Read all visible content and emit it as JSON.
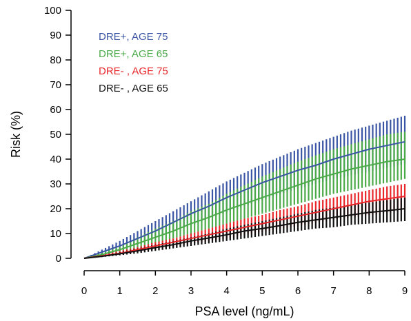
{
  "chart_data": {
    "type": "line",
    "title": "",
    "xlabel": "PSA level (ng/mL)",
    "ylabel": "Risk (%)",
    "xlim": [
      0,
      9
    ],
    "ylim": [
      0,
      100
    ],
    "x_ticks": [
      0,
      1,
      2,
      3,
      4,
      5,
      6,
      7,
      8,
      9
    ],
    "y_ticks": [
      0,
      10,
      20,
      30,
      40,
      50,
      60,
      70,
      80,
      90,
      100
    ],
    "grid": false,
    "legend_position": "top-left",
    "error_bars": true,
    "series": [
      {
        "name": "DRE+, AGE 75",
        "color": "#3a55a4",
        "x": [
          0,
          0.5,
          1,
          1.5,
          2,
          2.5,
          3,
          3.5,
          4,
          4.5,
          5,
          5.5,
          6,
          6.5,
          7,
          7.5,
          8,
          8.5,
          9
        ],
        "values": [
          0,
          2.5,
          5,
          8,
          11,
          14.5,
          18,
          21,
          24.5,
          27.5,
          30.5,
          33,
          35.5,
          37.5,
          40,
          42,
          44,
          45.5,
          47
        ],
        "lower": [
          0,
          1.5,
          3,
          5.5,
          8,
          11,
          13.5,
          16,
          18.5,
          21,
          23.5,
          26,
          28,
          30,
          32,
          33.5,
          35,
          36.5,
          38
        ],
        "upper": [
          0,
          3.5,
          7,
          11,
          15,
          19,
          23,
          27,
          31,
          34.5,
          38,
          41,
          44,
          46.5,
          49,
          51.5,
          53.5,
          55.5,
          57.5
        ]
      },
      {
        "name": "DRE+, AGE 65",
        "color": "#4aaa48",
        "x": [
          0,
          0.5,
          1,
          1.5,
          2,
          2.5,
          3,
          3.5,
          4,
          4.5,
          5,
          5.5,
          6,
          6.5,
          7,
          7.5,
          8,
          8.5,
          9
        ],
        "values": [
          0,
          1.5,
          3.5,
          6,
          8.5,
          11,
          14,
          16.5,
          19.5,
          22,
          24.5,
          27,
          29.5,
          32,
          34,
          36,
          37.5,
          39,
          40
        ],
        "lower": [
          0,
          1,
          2.5,
          4,
          6,
          8,
          10,
          12,
          14,
          16,
          18,
          20,
          22,
          24,
          26,
          27.5,
          29,
          30.5,
          32
        ],
        "upper": [
          0,
          2.5,
          5,
          8.5,
          12,
          15,
          19,
          22,
          26,
          29.5,
          33,
          36,
          39,
          41.5,
          44,
          46,
          48,
          50,
          51
        ]
      },
      {
        "name": "DRE- , AGE 75",
        "color": "#e8262a",
        "x": [
          0,
          0.5,
          1,
          1.5,
          2,
          2.5,
          3,
          3.5,
          4,
          4.5,
          5,
          5.5,
          6,
          6.5,
          7,
          7.5,
          8,
          8.5,
          9
        ],
        "values": [
          0,
          1,
          2,
          3.5,
          5,
          6.5,
          8,
          9.5,
          11,
          12.5,
          14,
          15.5,
          17,
          18.5,
          20,
          21.5,
          23,
          24,
          25
        ],
        "lower": [
          0,
          0.5,
          1.5,
          2.5,
          3.5,
          4.5,
          6,
          7,
          8,
          9.5,
          10.5,
          12,
          13,
          14.5,
          15.5,
          16.5,
          17.5,
          18.5,
          19.5
        ],
        "upper": [
          0,
          1.5,
          3,
          4.5,
          6.5,
          8,
          10,
          12,
          14,
          16,
          17.5,
          19.5,
          21,
          23,
          24.5,
          26,
          27.5,
          29,
          30
        ]
      },
      {
        "name": "DRE- , AGE 65",
        "color": "#111111",
        "x": [
          0,
          0.5,
          1,
          1.5,
          2,
          2.5,
          3,
          3.5,
          4,
          4.5,
          5,
          5.5,
          6,
          6.5,
          7,
          7.5,
          8,
          8.5,
          9
        ],
        "values": [
          0,
          0.8,
          1.8,
          3,
          4.3,
          5.5,
          7,
          8.2,
          9.5,
          11,
          12,
          13.2,
          14.5,
          15.5,
          16.5,
          17.5,
          18.5,
          19.2,
          20
        ],
        "lower": [
          0,
          0.5,
          1.2,
          2,
          3,
          4,
          5,
          6,
          7,
          8,
          9,
          10,
          11,
          12,
          12.5,
          13.5,
          14,
          14.5,
          15
        ],
        "upper": [
          0,
          1.2,
          2.5,
          4,
          5.5,
          7,
          8.5,
          10,
          12,
          13.5,
          15,
          16.5,
          18,
          19.5,
          20.5,
          21.5,
          22.5,
          23.5,
          24.5
        ]
      }
    ]
  }
}
